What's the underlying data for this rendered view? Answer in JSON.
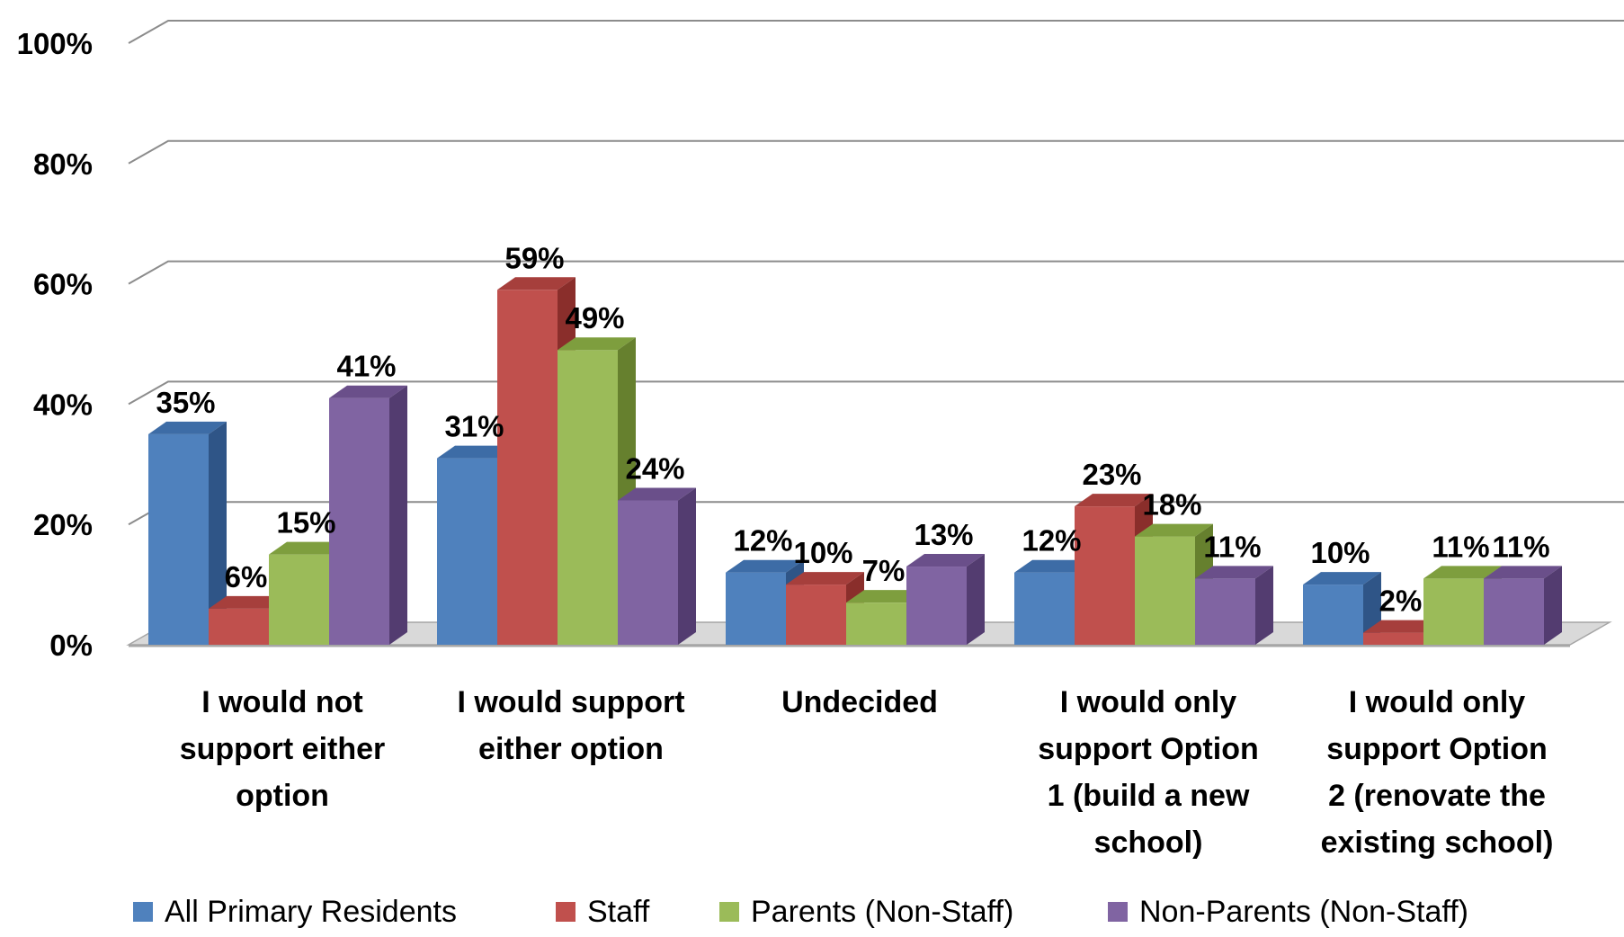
{
  "colors": {
    "All Primary Residents": {
      "front": "#4F81BD",
      "top": "#3D6CA6",
      "side": "#2F5587"
    },
    "Staff": {
      "front": "#C0504D",
      "top": "#A63F3C",
      "side": "#8A2E2B"
    },
    "Parents (Non-Staff)": {
      "front": "#9BBB59",
      "top": "#7E9E3E",
      "side": "#66802E"
    },
    "Non-Parents (Non-Staff)": {
      "front": "#8064A2",
      "top": "#6A4F8A",
      "side": "#533C70"
    },
    "grid": "#8C8C8C",
    "floor": "#D9D9D9"
  },
  "chart_data": {
    "type": "bar",
    "categories": [
      [
        "I would not",
        "support either",
        "option"
      ],
      [
        "I would support",
        "either option"
      ],
      [
        "Undecided"
      ],
      [
        "I would only",
        "support Option",
        "1 (build a new",
        "school)"
      ],
      [
        "I would only",
        "support Option",
        "2 (renovate the",
        "existing school)"
      ]
    ],
    "series": [
      {
        "name": "All Primary Residents",
        "values": [
          35,
          31,
          12,
          12,
          10
        ]
      },
      {
        "name": "Staff",
        "values": [
          6,
          59,
          10,
          23,
          2
        ]
      },
      {
        "name": "Parents (Non-Staff)",
        "values": [
          15,
          49,
          7,
          18,
          11
        ]
      },
      {
        "name": "Non-Parents (Non-Staff)",
        "values": [
          41,
          24,
          13,
          11,
          11
        ]
      }
    ],
    "ylim": [
      0,
      100
    ],
    "yticks": [
      0,
      20,
      40,
      60,
      80,
      100
    ],
    "ytick_labels": [
      "0%",
      "20%",
      "40%",
      "60%",
      "80%",
      "100%"
    ],
    "data_label_suffix": "%",
    "grid": true,
    "legend": "bottom",
    "projection": "3d-clustered"
  }
}
